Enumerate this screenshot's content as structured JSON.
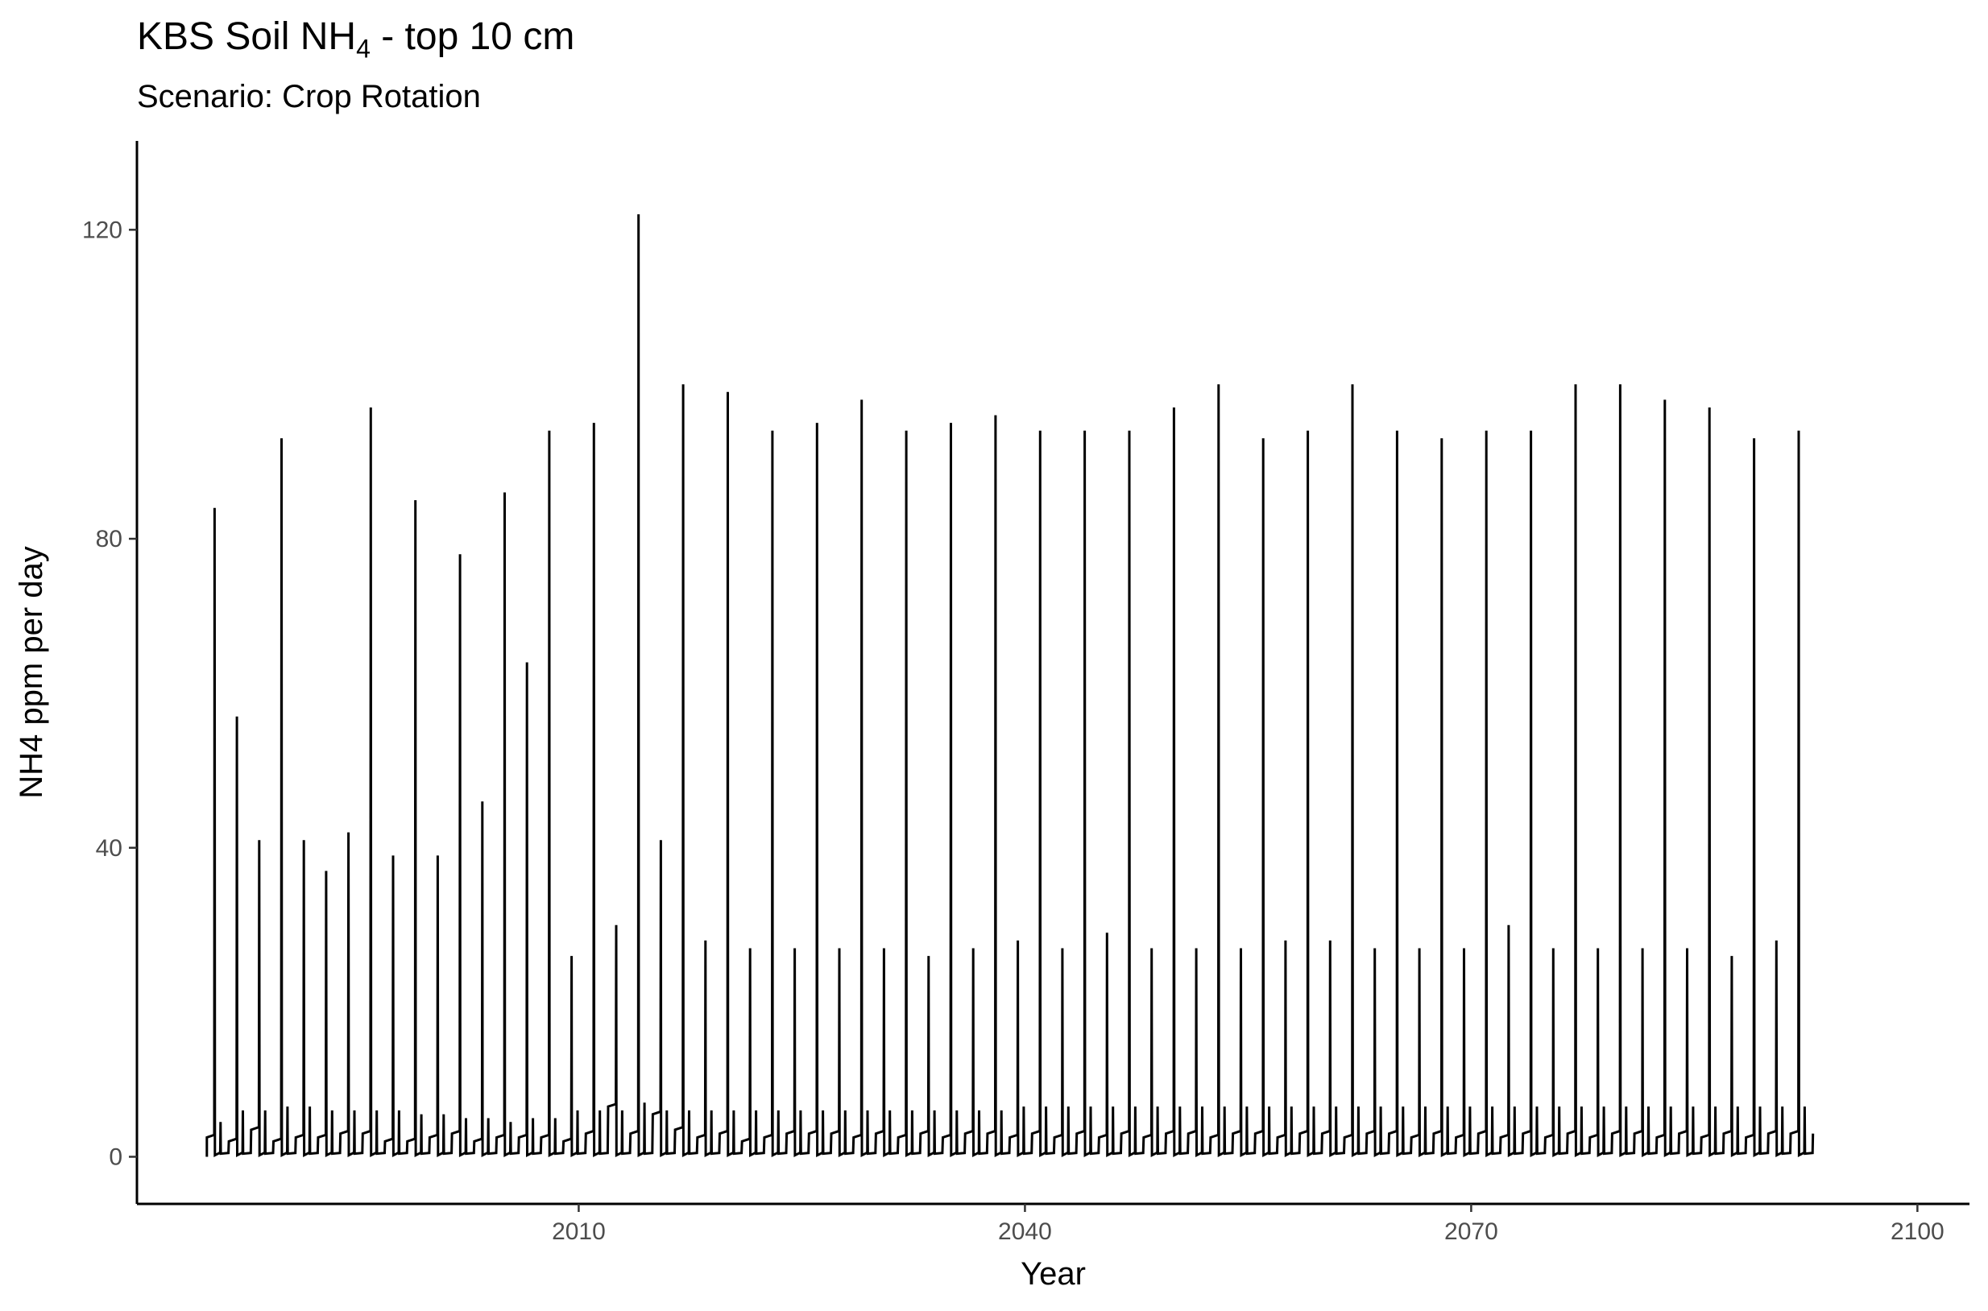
{
  "chart_data": {
    "type": "line",
    "title_main": "KBS Soil NH",
    "title_sub": "4",
    "title_rest": " - top 10 cm",
    "subtitle": "Scenario: Crop Rotation",
    "xlabel": "Year",
    "ylabel": "NH4 ppm per day",
    "xlim": [
      1980.3,
      2103.5
    ],
    "ylim": [
      -6.1,
      131.5
    ],
    "x_ticks": [
      2010,
      2040,
      2070,
      2100
    ],
    "x_tick_labels": [
      "2010",
      "2040",
      "2070",
      "2100"
    ],
    "y_ticks": [
      0,
      40,
      80,
      120
    ],
    "y_tick_labels": [
      "0",
      "40",
      "80",
      "120"
    ],
    "grid": false,
    "line_color": "#000000",
    "series_yearly": {
      "start_year": 1985,
      "peak": [
        84,
        57,
        41,
        93,
        41,
        37,
        42,
        97,
        39,
        85,
        39,
        78,
        46,
        86,
        64,
        94,
        26,
        95,
        30,
        122,
        41,
        100,
        28,
        99,
        27,
        94,
        27,
        95,
        27,
        98,
        27,
        94,
        26,
        95,
        27,
        96,
        28,
        94,
        27,
        94,
        29,
        94,
        27,
        97,
        27,
        100,
        27,
        93,
        28,
        94,
        28,
        100,
        27,
        94,
        27,
        93,
        27,
        94,
        30,
        94,
        27,
        100,
        27,
        100,
        27,
        98,
        27,
        97,
        26,
        93,
        28,
        94
      ],
      "secondary": [
        4.5,
        6,
        6,
        6.5,
        6.5,
        6,
        6,
        6,
        6,
        5.5,
        5.5,
        5,
        5,
        4.5,
        5,
        5,
        6,
        6,
        6,
        7,
        6,
        6,
        6,
        6,
        6,
        6,
        6,
        6,
        6,
        6,
        6,
        6,
        6,
        6,
        6,
        6,
        6.5,
        6.5,
        6.5,
        6.5,
        6.5,
        6.5,
        6.5,
        6.5,
        6.5,
        6.5,
        6.5,
        6.5,
        6.5,
        6.5,
        6.5,
        6.5,
        6.5,
        6.5,
        6.5,
        6.5,
        6.5,
        6.5,
        6.5,
        6.5,
        6.5,
        6.5,
        6.5,
        6.5,
        6.5,
        6.5,
        6.5,
        6.5,
        6.5,
        6.5,
        6.5,
        6.5
      ],
      "baseline": [
        2.5,
        2,
        3.5,
        2,
        2.5,
        2.5,
        3,
        3,
        2,
        2,
        2.5,
        3,
        2,
        2.5,
        2.5,
        2.5,
        2,
        3,
        6.5,
        3,
        5.5,
        3.5,
        2.5,
        3,
        2,
        2.5,
        3,
        3,
        3,
        2.5,
        3,
        2.5,
        3,
        2.5,
        3,
        3,
        2.5,
        3,
        2.5,
        3,
        2.5,
        3,
        2.5,
        3,
        3,
        2.5,
        3,
        3,
        2.5,
        3,
        3,
        2.5,
        3,
        3,
        2.5,
        3,
        2.5,
        3,
        2.5,
        3,
        2.5,
        3,
        2.5,
        3,
        3,
        2.5,
        3,
        2.5,
        3,
        2.5,
        3,
        3
      ]
    }
  }
}
